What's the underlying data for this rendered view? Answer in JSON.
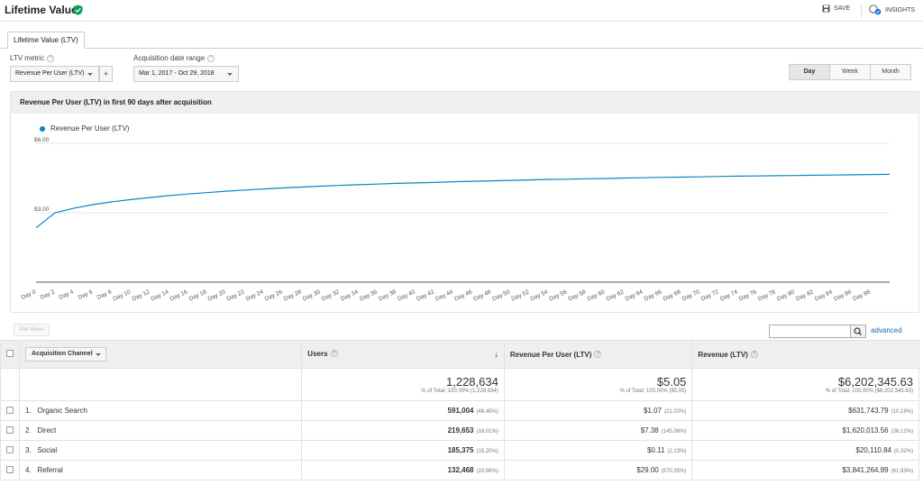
{
  "header": {
    "title": "Lifetime Value",
    "save_label": "SAVE",
    "insights_label": "INSIGHTS"
  },
  "tabs": [
    {
      "label": "Lifetime Value (LTV)"
    }
  ],
  "controls": {
    "ltv_metric_label": "LTV metric",
    "ltv_metric_value": "Revenue Per User (LTV)",
    "plus_label": "+",
    "date_range_label": "Acquisition date range",
    "date_range_value": "Mar 1, 2017 - Oct 29, 2018",
    "granularity": [
      "Day",
      "Week",
      "Month"
    ],
    "granularity_selected": "Day"
  },
  "chart_header": "Revenue Per User (LTV) in first 90 days after acquisition",
  "chart_data": {
    "type": "line",
    "series": [
      {
        "name": "Revenue Per User (LTV)",
        "color": "#0b84c6",
        "x": [
          0,
          2,
          4,
          6,
          8,
          10,
          12,
          14,
          16,
          18,
          20,
          22,
          24,
          26,
          28,
          30,
          32,
          34,
          36,
          38,
          40,
          42,
          44,
          46,
          48,
          50,
          52,
          54,
          56,
          58,
          60,
          62,
          64,
          66,
          68,
          70,
          72,
          74,
          76,
          78,
          80,
          82,
          84,
          86,
          88,
          90
        ],
        "values": [
          2.35,
          3.0,
          3.2,
          3.35,
          3.47,
          3.57,
          3.66,
          3.74,
          3.81,
          3.87,
          3.93,
          3.98,
          4.03,
          4.07,
          4.11,
          4.15,
          4.18,
          4.21,
          4.24,
          4.27,
          4.29,
          4.31,
          4.34,
          4.36,
          4.38,
          4.4,
          4.42,
          4.44,
          4.45,
          4.47,
          4.48,
          4.5,
          4.51,
          4.53,
          4.54,
          4.55,
          4.57,
          4.58,
          4.59,
          4.6,
          4.61,
          4.62,
          4.63,
          4.64,
          4.65,
          4.66
        ]
      }
    ],
    "x_tick_labels": [
      "Day 0",
      "Day 2",
      "Day 4",
      "Day 6",
      "Day 8",
      "Day 10",
      "Day 12",
      "Day 14",
      "Day 16",
      "Day 18",
      "Day 20",
      "Day 22",
      "Day 24",
      "Day 26",
      "Day 28",
      "Day 30",
      "Day 32",
      "Day 34",
      "Day 36",
      "Day 38",
      "Day 40",
      "Day 42",
      "Day 44",
      "Day 46",
      "Day 48",
      "Day 50",
      "Day 52",
      "Day 54",
      "Day 56",
      "Day 58",
      "Day 60",
      "Day 62",
      "Day 64",
      "Day 66",
      "Day 68",
      "Day 70",
      "Day 72",
      "Day 74",
      "Day 76",
      "Day 78",
      "Day 80",
      "Day 82",
      "Day 84",
      "Day 86",
      "Day 88"
    ],
    "y_tick_labels": [
      "$6.00",
      "$3.00"
    ],
    "y_ticks": [
      6,
      3
    ],
    "ylim": [
      0,
      6
    ],
    "xlim": [
      0,
      90
    ],
    "grid": true,
    "legend": "top-left"
  },
  "table": {
    "plot_rows_label": "Plot Rows",
    "advanced_label": "advanced",
    "dimension_label": "Acquisition Channel",
    "columns": [
      "Users",
      "Revenue Per User (LTV)",
      "Revenue (LTV)"
    ],
    "totals": {
      "users": "1,228,634",
      "users_sub": "% of Total: 100.00% (1,228,634)",
      "rpu": "$5.05",
      "rpu_sub": "% of Total: 100.00% ($5.05)",
      "revenue": "$6,202,345.63",
      "revenue_sub": "% of Total: 100.00% ($6,202,345.63)"
    },
    "rows": [
      {
        "idx": "1.",
        "name": "Organic Search",
        "users": "591,004",
        "users_pct": "(48.45%)",
        "rpu": "$1.07",
        "rpu_pct": "(21.02%)",
        "revenue": "$631,743.79",
        "revenue_pct": "(10.19%)"
      },
      {
        "idx": "2.",
        "name": "Direct",
        "users": "219,653",
        "users_pct": "(18.01%)",
        "rpu": "$7.38",
        "rpu_pct": "(145.06%)",
        "revenue": "$1,620,013.56",
        "revenue_pct": "(26.12%)"
      },
      {
        "idx": "3.",
        "name": "Social",
        "users": "185,375",
        "users_pct": "(15.20%)",
        "rpu": "$0.11",
        "rpu_pct": "(2.13%)",
        "revenue": "$20,110.84",
        "revenue_pct": "(0.32%)"
      },
      {
        "idx": "4.",
        "name": "Referral",
        "users": "132,468",
        "users_pct": "(10.86%)",
        "rpu": "$29.00",
        "rpu_pct": "(570.35%)",
        "revenue": "$3,841,264.89",
        "revenue_pct": "(61.93%)"
      }
    ]
  }
}
